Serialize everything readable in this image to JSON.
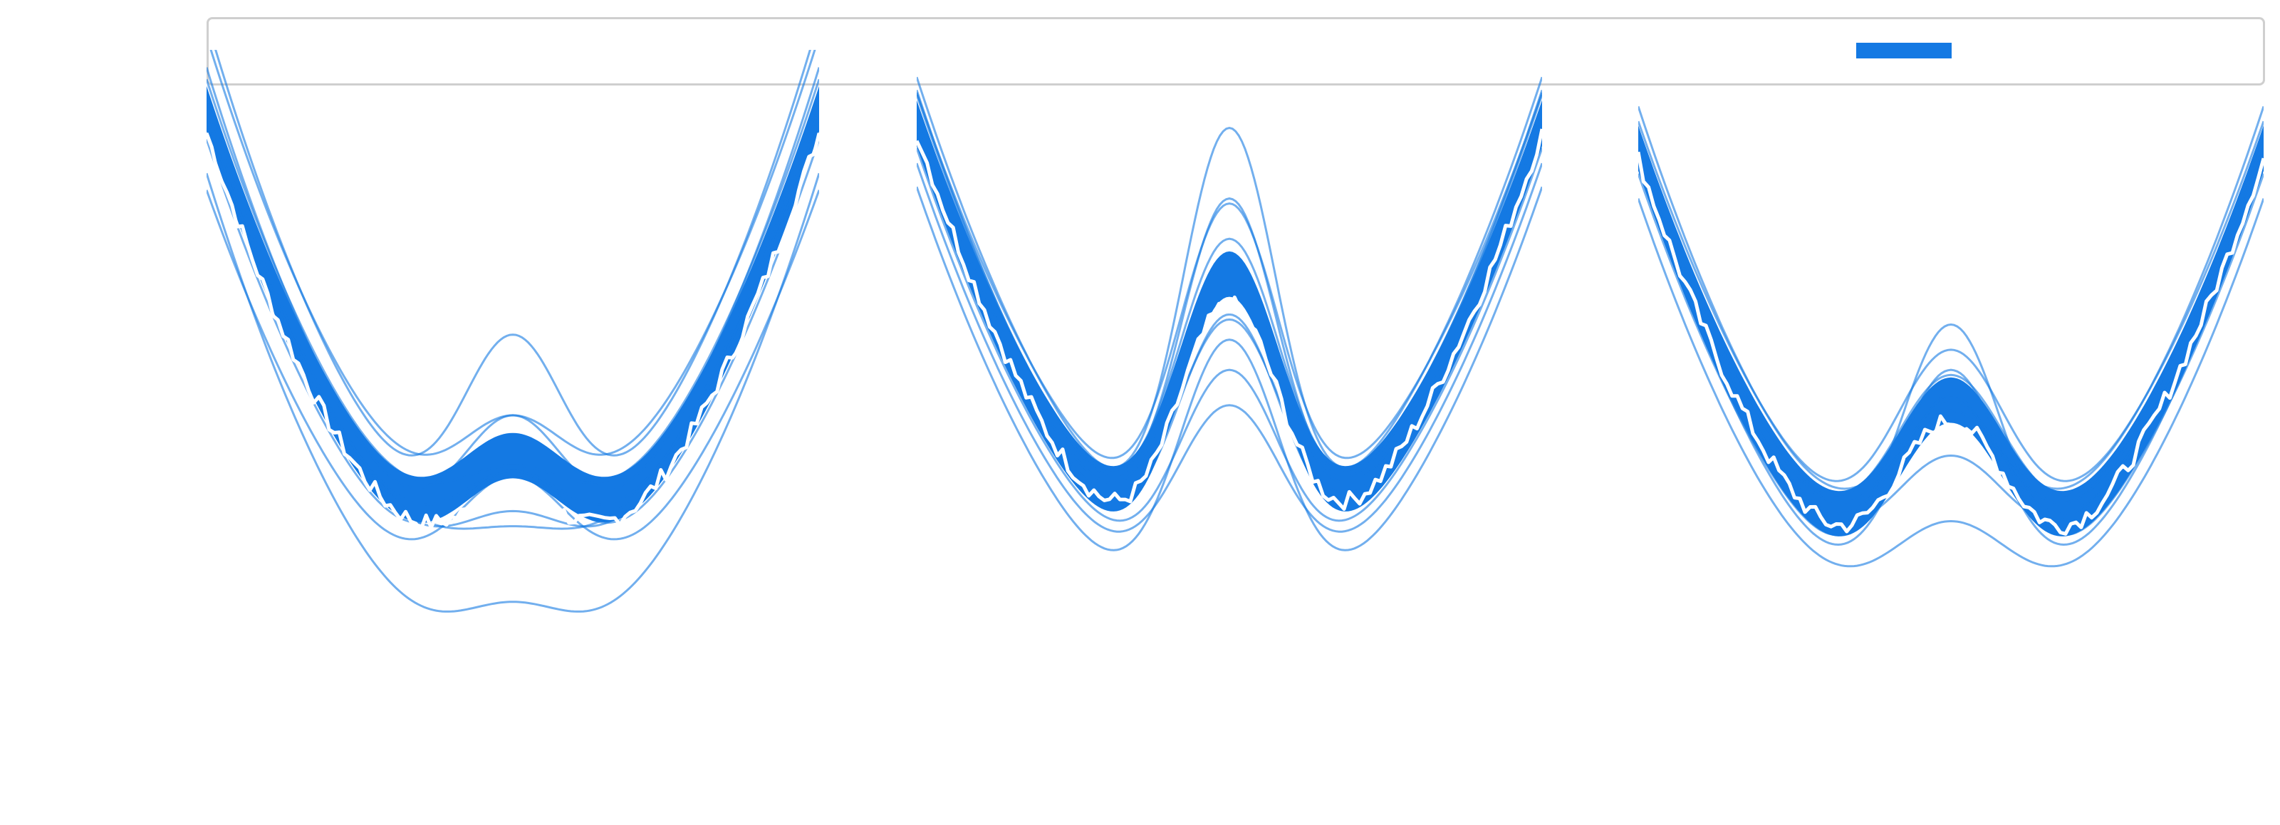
{
  "legend": {
    "label": "",
    "color": "#1479e3"
  },
  "colors": {
    "band": "#1479e3",
    "model_line": "#1479e3",
    "observed_line": "#ffffff"
  },
  "chart_data": [
    {
      "type": "line",
      "title": "",
      "xlabel": "",
      "ylabel": "",
      "grid": false,
      "legend_position": "top-right",
      "xlim": [
        -3,
        3
      ],
      "ylim": [
        -5,
        8
      ],
      "model_curves": [
        {
          "a": 1.0,
          "h": 2.0,
          "w": 0.55,
          "s": 1.0,
          "c": 0.0
        },
        {
          "a": 1.1,
          "h": 3.0,
          "w": 0.52,
          "s": 1.0,
          "c": 0.1
        },
        {
          "a": 0.95,
          "h": 1.0,
          "w": 0.58,
          "s": 1.05,
          "c": -0.1
        },
        {
          "a": 1.05,
          "h": 2.5,
          "w": 0.55,
          "s": 0.98,
          "c": -0.5
        },
        {
          "a": 1.0,
          "h": 1.7,
          "w": 0.6,
          "s": 1.02,
          "c": 0.4
        },
        {
          "a": 1.15,
          "h": 4.1,
          "w": 0.5,
          "s": 1.0,
          "c": 0.6
        },
        {
          "a": 0.9,
          "h": 1.3,
          "w": 0.55,
          "s": 1.1,
          "c": -1.9
        },
        {
          "a": 1.0,
          "h": 2.8,
          "w": 0.57,
          "s": 0.97,
          "c": -0.9
        },
        {
          "a": 1.08,
          "h": 2.2,
          "w": 0.54,
          "s": 1.0,
          "c": 0.9
        },
        {
          "a": 0.98,
          "h": 1.5,
          "w": 0.56,
          "s": 1.03,
          "c": -0.3
        }
      ],
      "band_center": {
        "a": 1.02,
        "h": 2.3,
        "w": 0.55,
        "s": 1.0,
        "c": 0.0
      },
      "band_halfwidth": 0.45,
      "observed": {
        "a": 1.0,
        "h": 1.8,
        "w": 0.55,
        "s": 1.0,
        "c": -0.3,
        "noise": 0.35,
        "points": 120
      }
    },
    {
      "type": "line",
      "title": "",
      "xlabel": "",
      "ylabel": "",
      "grid": false,
      "legend_position": "top-right",
      "xlim": [
        -3,
        3
      ],
      "ylim": [
        -5,
        8
      ],
      "model_curves": [
        {
          "a": 1.0,
          "h": 6.2,
          "w": 0.5,
          "s": 1.0,
          "c": 0.0
        },
        {
          "a": 1.05,
          "h": 7.3,
          "w": 0.48,
          "s": 1.0,
          "c": 0.1
        },
        {
          "a": 0.95,
          "h": 5.2,
          "w": 0.52,
          "s": 1.02,
          "c": -0.2
        },
        {
          "a": 1.1,
          "h": 8.5,
          "w": 0.46,
          "s": 0.98,
          "c": 0.3
        },
        {
          "a": 1.0,
          "h": 4.6,
          "w": 0.5,
          "s": 1.0,
          "c": -0.6
        },
        {
          "a": 0.9,
          "h": 5.9,
          "w": 0.5,
          "s": 1.05,
          "c": -1.3
        },
        {
          "a": 1.0,
          "h": 6.8,
          "w": 0.49,
          "s": 1.0,
          "c": 0.5
        },
        {
          "a": 1.05,
          "h": 5.5,
          "w": 0.51,
          "s": 0.97,
          "c": -0.4
        },
        {
          "a": 0.97,
          "h": 6.4,
          "w": 0.5,
          "s": 1.03,
          "c": 0.2
        },
        {
          "a": 1.0,
          "h": 4.2,
          "w": 0.53,
          "s": 1.0,
          "c": -0.9
        }
      ],
      "band_center": {
        "a": 1.0,
        "h": 6.0,
        "w": 0.5,
        "s": 1.0,
        "c": -0.1
      },
      "band_halfwidth": 0.45,
      "observed": {
        "a": 1.0,
        "h": 5.6,
        "w": 0.5,
        "s": 1.0,
        "c": -0.3,
        "noise": 0.35,
        "points": 120
      }
    },
    {
      "type": "line",
      "title": "",
      "xlabel": "",
      "ylabel": "",
      "grid": false,
      "legend_position": "top-right",
      "xlim": [
        -3,
        3
      ],
      "ylim": [
        -5,
        8
      ],
      "model_curves": [
        {
          "a": 1.0,
          "h": 4.0,
          "w": 0.55,
          "s": 1.0,
          "c": -0.6
        },
        {
          "a": 1.05,
          "h": 5.8,
          "w": 0.5,
          "s": 1.0,
          "c": -0.9
        },
        {
          "a": 0.95,
          "h": 3.2,
          "w": 0.6,
          "s": 1.05,
          "c": -0.2
        },
        {
          "a": 1.1,
          "h": 4.8,
          "w": 0.53,
          "s": 0.98,
          "c": -1.3
        },
        {
          "a": 1.0,
          "h": 2.6,
          "w": 0.62,
          "s": 1.0,
          "c": -1.6
        },
        {
          "a": 0.9,
          "h": 4.4,
          "w": 0.55,
          "s": 1.05,
          "c": 0.0
        },
        {
          "a": 1.0,
          "h": 3.6,
          "w": 0.57,
          "s": 1.0,
          "c": -0.4
        },
        {
          "a": 1.05,
          "h": 5.0,
          "w": 0.52,
          "s": 0.97,
          "c": -1.0
        },
        {
          "a": 0.97,
          "h": 3.0,
          "w": 0.58,
          "s": 1.03,
          "c": -0.7
        },
        {
          "a": 1.0,
          "h": 4.2,
          "w": 0.56,
          "s": 1.0,
          "c": -0.3
        }
      ],
      "band_center": {
        "a": 1.0,
        "h": 4.0,
        "w": 0.55,
        "s": 1.0,
        "c": -0.6
      },
      "band_halfwidth": 0.45,
      "observed": {
        "a": 1.0,
        "h": 3.8,
        "w": 0.55,
        "s": 1.0,
        "c": -0.8,
        "noise": 0.35,
        "points": 120
      }
    }
  ]
}
